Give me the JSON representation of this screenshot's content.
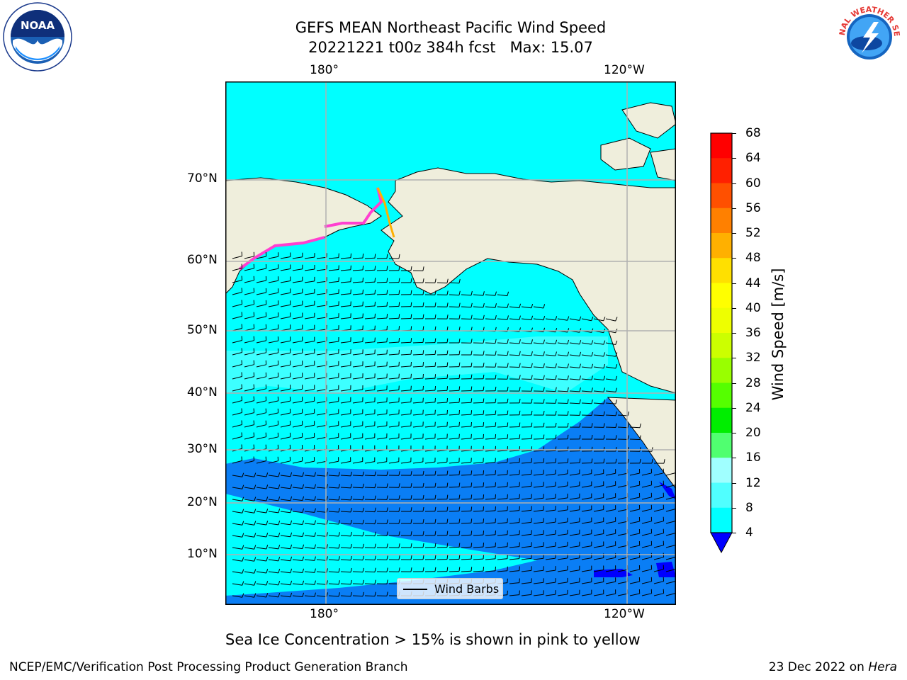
{
  "title": {
    "line1": "GEFS MEAN Northeast Pacific Wind Speed",
    "line2": "20221221 t00z 384h fcst   Max: 15.07"
  },
  "logos": {
    "left": {
      "icon": "noaa-logo",
      "text": "NOAA"
    },
    "right": {
      "icon": "national-weather-service-logo",
      "text": "NATIONAL WEATHER SERVICE"
    }
  },
  "map": {
    "lon_labels_top": [
      "180°",
      "120°W"
    ],
    "lon_labels_bottom": [
      "180°",
      "120°W"
    ],
    "lat_labels": [
      "70°N",
      "60°N",
      "50°N",
      "40°N",
      "30°N",
      "20°N",
      "10°N"
    ],
    "legend_label": "Wind Barbs",
    "colors": {
      "land": "#efeedc",
      "ocean_4_8": "#0a7ef5",
      "ocean_8_12": "#00ffff",
      "ocean_12_16": "#3dffff",
      "sea_ice": "#ff3fd0",
      "below_4": "#0000ff"
    }
  },
  "colorbar": {
    "label": "Wind Speed [m/s]",
    "ticks": [
      "68",
      "64",
      "60",
      "56",
      "52",
      "48",
      "44",
      "40",
      "36",
      "32",
      "28",
      "24",
      "20",
      "16",
      "12",
      "8",
      "4"
    ],
    "colors_top_to_bottom": [
      "#ff0000",
      "#ff2000",
      "#ff5000",
      "#ff8000",
      "#ffb000",
      "#ffe000",
      "#ffff00",
      "#eeff00",
      "#ccff00",
      "#99ff00",
      "#55ff00",
      "#00ee00",
      "#50ff70",
      "#a0ffff",
      "#50ffff",
      "#00ffff",
      "#0080ff"
    ],
    "under_color": "#0000ff"
  },
  "note": "Sea Ice Concentration > 15% is shown in pink to yellow",
  "footer": {
    "left": "NCEP/EMC/Verification Post Processing Product Generation Branch",
    "right_prefix": "23 Dec 2022 on ",
    "right_machine": "Hera"
  }
}
